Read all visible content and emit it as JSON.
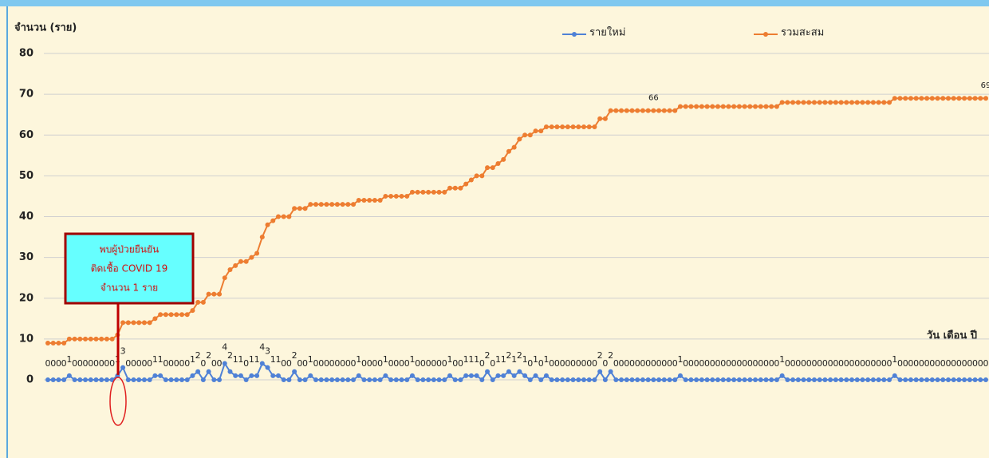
{
  "chart_data": {
    "type": "line",
    "y_label": "จำนวน (ราย)",
    "x_label": "วัน เดือน ปี",
    "annotation": [
      "พบผู้ป่วยยืนยัน",
      "ติดเชื้อ COVID 19",
      "จำนวน 1 ราย"
    ],
    "ylim": [
      0,
      80
    ],
    "yticks": [
      0,
      10,
      20,
      30,
      40,
      50,
      60,
      70,
      80
    ],
    "grid": true,
    "legend": "top",
    "series": [
      {
        "name": "รายใหม่",
        "color": "#4f81d6",
        "data_labels": true,
        "values": [
          0,
          0,
          0,
          0,
          1,
          0,
          0,
          0,
          0,
          0,
          0,
          0,
          0,
          1,
          3,
          0,
          0,
          0,
          0,
          0,
          1,
          1,
          0,
          0,
          0,
          0,
          0,
          1,
          2,
          0,
          2,
          0,
          0,
          4,
          2,
          1,
          1,
          0,
          1,
          1,
          4,
          3,
          1,
          1,
          0,
          0,
          2,
          0,
          0,
          1,
          0,
          0,
          0,
          0,
          0,
          0,
          0,
          0,
          1,
          0,
          0,
          0,
          0,
          1,
          0,
          0,
          0,
          0,
          1,
          0,
          0,
          0,
          0,
          0,
          0,
          1,
          0,
          0,
          1,
          1,
          1,
          0,
          2,
          0,
          1,
          1,
          2,
          1,
          2,
          1,
          0,
          1,
          0,
          1,
          0,
          0,
          0,
          0,
          0,
          0,
          0,
          0,
          0,
          2,
          0,
          2,
          0,
          0,
          0,
          0,
          0,
          0,
          0,
          0,
          0,
          0,
          0,
          0,
          1,
          0,
          0,
          0,
          0,
          0,
          0,
          0,
          0,
          0,
          0,
          0,
          0,
          0,
          0,
          0,
          0,
          0,
          0,
          1,
          0,
          0,
          0,
          0,
          0,
          0,
          0,
          0,
          0,
          0,
          0,
          0,
          0,
          0,
          0,
          0,
          0,
          0,
          0,
          0,
          1,
          0,
          0,
          0,
          0,
          0,
          0,
          0,
          0,
          0,
          0,
          0,
          0,
          0,
          0,
          0,
          0,
          0
        ]
      },
      {
        "name": "รวมสะสม",
        "color": "#ed7d31",
        "values": [
          9,
          9,
          9,
          9,
          10,
          10,
          10,
          10,
          10,
          10,
          10,
          10,
          10,
          11,
          14,
          14,
          14,
          14,
          14,
          14,
          15,
          16,
          16,
          16,
          16,
          16,
          16,
          17,
          19,
          19,
          21,
          21,
          21,
          25,
          27,
          28,
          29,
          29,
          30,
          31,
          35,
          38,
          39,
          40,
          40,
          40,
          42,
          42,
          42,
          43,
          43,
          43,
          43,
          43,
          43,
          43,
          43,
          43,
          44,
          44,
          44,
          44,
          44,
          45,
          45,
          45,
          45,
          45,
          46,
          46,
          46,
          46,
          46,
          46,
          46,
          47,
          47,
          47,
          48,
          49,
          50,
          50,
          52,
          52,
          53,
          54,
          56,
          57,
          59,
          60,
          60,
          61,
          61,
          62,
          62,
          62,
          62,
          62,
          62,
          62,
          62,
          62,
          62,
          64,
          64,
          66,
          66,
          66,
          66,
          66,
          66,
          66,
          66,
          66,
          66,
          66,
          66,
          66,
          67,
          67,
          67,
          67,
          67,
          67,
          67,
          67,
          67,
          67,
          67,
          67,
          67,
          67,
          67,
          67,
          67,
          67,
          67,
          68,
          68,
          68,
          68,
          68,
          68,
          68,
          68,
          68,
          68,
          68,
          68,
          68,
          68,
          68,
          68,
          68,
          68,
          68,
          68,
          68,
          69,
          69,
          69,
          69,
          69,
          69,
          69,
          69,
          69,
          69,
          69,
          69,
          69,
          69,
          69,
          69,
          69,
          69
        ],
        "value_labels": [
          null,
          null,
          null,
          null,
          null,
          null,
          null,
          null,
          null,
          null,
          null,
          null,
          null,
          null,
          null,
          null,
          null,
          null,
          null,
          null,
          null,
          null,
          null,
          null,
          null,
          null,
          null,
          null,
          null,
          null,
          null,
          null,
          null,
          null,
          null,
          null,
          null,
          null,
          null,
          null,
          null,
          null,
          null,
          null,
          null,
          null,
          null,
          null,
          null,
          null,
          null,
          null,
          null,
          null,
          null,
          null,
          null,
          null,
          null,
          null,
          null,
          null,
          null,
          null,
          null,
          null,
          null,
          null,
          null,
          null,
          null,
          null,
          null,
          null,
          null,
          null,
          null,
          null,
          null,
          null,
          null,
          null,
          null,
          null,
          null,
          null,
          null,
          null,
          null,
          null,
          null,
          null,
          null,
          null,
          null,
          null,
          null,
          null,
          null,
          null,
          null,
          null,
          null,
          null,
          null,
          null,
          null,
          null,
          null,
          null,
          null,
          null,
          null,
          "66",
          null,
          null,
          null,
          null,
          null,
          null,
          null,
          null,
          null,
          null,
          null,
          null,
          null,
          null,
          null,
          null,
          null,
          null,
          null,
          null,
          null,
          null,
          null,
          null,
          null,
          null,
          null,
          null,
          null,
          null,
          null,
          null,
          null,
          null,
          null,
          null,
          null,
          null,
          null,
          null,
          null,
          null,
          null,
          null,
          null,
          null,
          null,
          null,
          null,
          null,
          null,
          null,
          null,
          null,
          null,
          null,
          null,
          null,
          null,
          null,
          null,
          "69"
        ]
      }
    ]
  }
}
